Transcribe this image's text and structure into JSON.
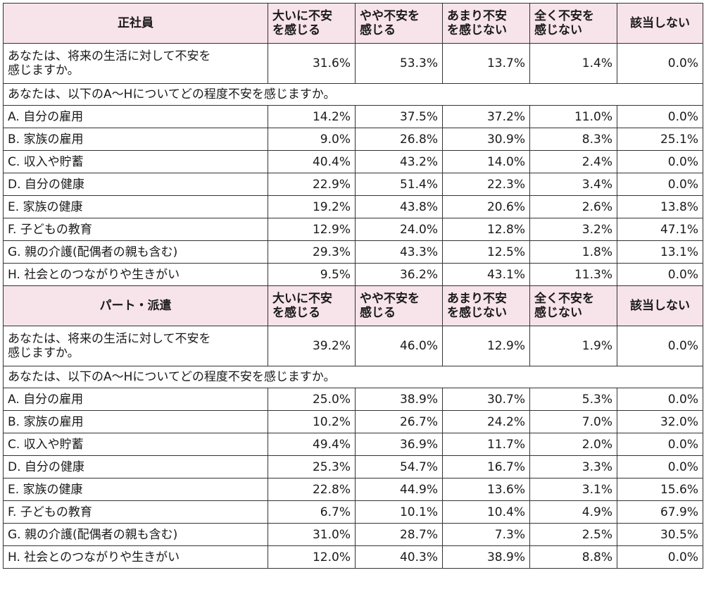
{
  "column_headers": [
    "大いに不安を感じる",
    "やや不安を感じる",
    "あまり不安を感じない",
    "全く不安を感じない",
    "該当しない"
  ],
  "column_headers_lines": [
    [
      "大いに不安",
      "を感じる"
    ],
    [
      "やや不安を",
      "感じる"
    ],
    [
      "あまり不安",
      "を感じない"
    ],
    [
      "全く不安を",
      "感じない"
    ],
    [
      "該当しない"
    ]
  ],
  "groups": [
    {
      "title": "正社員",
      "overall": {
        "question_lines": [
          "あなたは、将来の生活に対して不安を",
          "感じますか。"
        ],
        "values": [
          "31.6%",
          "53.3%",
          "13.7%",
          "1.4%",
          "0.0%"
        ]
      },
      "subheading": "あなたは、以下のA〜Hについてどの程度不安を感じますか。",
      "items": [
        {
          "label": "A. 自分の雇用",
          "values": [
            "14.2%",
            "37.5%",
            "37.2%",
            "11.0%",
            "0.0%"
          ]
        },
        {
          "label": "B. 家族の雇用",
          "values": [
            "9.0%",
            "26.8%",
            "30.9%",
            "8.3%",
            "25.1%"
          ]
        },
        {
          "label": "C. 収入や貯蓄",
          "values": [
            "40.4%",
            "43.2%",
            "14.0%",
            "2.4%",
            "0.0%"
          ]
        },
        {
          "label": "D. 自分の健康",
          "values": [
            "22.9%",
            "51.4%",
            "22.3%",
            "3.4%",
            "0.0%"
          ]
        },
        {
          "label": "E. 家族の健康",
          "values": [
            "19.2%",
            "43.8%",
            "20.6%",
            "2.6%",
            "13.8%"
          ]
        },
        {
          "label": "F. 子どもの教育",
          "values": [
            "12.9%",
            "24.0%",
            "12.8%",
            "3.2%",
            "47.1%"
          ]
        },
        {
          "label": "G. 親の介護(配偶者の親も含む)",
          "values": [
            "29.3%",
            "43.3%",
            "12.5%",
            "1.8%",
            "13.1%"
          ]
        },
        {
          "label": "H. 社会とのつながりや生きがい",
          "values": [
            "9.5%",
            "36.2%",
            "43.1%",
            "11.3%",
            "0.0%"
          ]
        }
      ]
    },
    {
      "title": "パート・派遣",
      "overall": {
        "question_lines": [
          "あなたは、将来の生活に対して不安を",
          "感じますか。"
        ],
        "values": [
          "39.2%",
          "46.0%",
          "12.9%",
          "1.9%",
          "0.0%"
        ]
      },
      "subheading": "あなたは、以下のA〜Hについてどの程度不安を感じますか。",
      "items": [
        {
          "label": "A. 自分の雇用",
          "values": [
            "25.0%",
            "38.9%",
            "30.7%",
            "5.3%",
            "0.0%"
          ]
        },
        {
          "label": "B. 家族の雇用",
          "values": [
            "10.2%",
            "26.7%",
            "24.2%",
            "7.0%",
            "32.0%"
          ]
        },
        {
          "label": "C. 収入や貯蓄",
          "values": [
            "49.4%",
            "36.9%",
            "11.7%",
            "2.0%",
            "0.0%"
          ]
        },
        {
          "label": "D. 自分の健康",
          "values": [
            "25.3%",
            "54.7%",
            "16.7%",
            "3.3%",
            "0.0%"
          ]
        },
        {
          "label": "E. 家族の健康",
          "values": [
            "22.8%",
            "44.9%",
            "13.6%",
            "3.1%",
            "15.6%"
          ]
        },
        {
          "label": "F. 子どもの教育",
          "values": [
            "6.7%",
            "10.1%",
            "10.4%",
            "4.9%",
            "67.9%"
          ]
        },
        {
          "label": "G. 親の介護(配偶者の親も含む)",
          "values": [
            "31.0%",
            "28.7%",
            "7.3%",
            "2.5%",
            "30.5%"
          ]
        },
        {
          "label": "H. 社会とのつながりや生きがい",
          "values": [
            "12.0%",
            "40.3%",
            "38.9%",
            "8.8%",
            "0.0%"
          ]
        }
      ]
    }
  ],
  "colors": {
    "header_background": "#f7e3ea",
    "border": "#333333"
  }
}
